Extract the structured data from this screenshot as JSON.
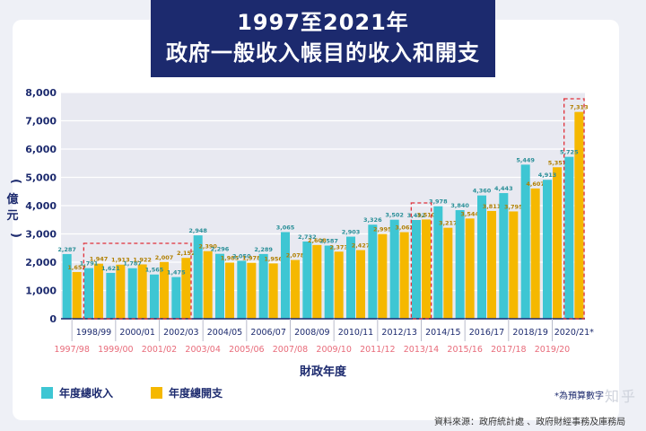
{
  "header": {
    "title_line1": "1997至2021年",
    "title_line2": "政府一般收入帳目的收入和開支"
  },
  "footnote": "*為預算數字",
  "source": "資料來源：政府統計處 、政府財經事務及庫務局",
  "watermark": "知乎",
  "colors": {
    "revenue": "#3ec6d3",
    "expenditure": "#f5b800",
    "title_bg": "#1c2a6e",
    "highlight": "#e0303a",
    "odd_label": "#e86b7a",
    "even_label": "#1c2a6e"
  },
  "chart_data": {
    "type": "bar",
    "xlabel": "財政年度",
    "ylabel": "(億元)",
    "ylim": [
      0,
      8000
    ],
    "yticks": [
      "0",
      "1,000",
      "2,000",
      "3,000",
      "4,000",
      "5,000",
      "6,000",
      "7,000",
      "8,000"
    ],
    "legend_position": "bottom-left",
    "grid": true,
    "categories": [
      "1997/98",
      "1998/99",
      "1999/00",
      "2000/01",
      "2001/02",
      "2002/03",
      "2003/04",
      "2004/05",
      "2005/06",
      "2006/07",
      "2007/08",
      "2008/09",
      "2009/10",
      "2010/11",
      "2011/12",
      "2012/13",
      "2013/14",
      "2014/15",
      "2015/16",
      "2016/17",
      "2017/18",
      "2018/19",
      "2019/20",
      "2020/21*"
    ],
    "series": [
      {
        "name": "年度總收入",
        "values": [
          2287,
          1791,
          1621,
          1787,
          1565,
          1475,
          2948,
          2296,
          2050,
          2289,
          3065,
          2732,
          2587,
          2903,
          3326,
          3502,
          3492,
          3978,
          3840,
          4360,
          4443,
          5449,
          4913,
          5725
        ],
        "labels": [
          "2,287",
          "1,791",
          "1,621",
          "1,787",
          "1,565",
          "1,475",
          "2,948",
          "2,296",
          "2,050",
          "2,289",
          "3,065",
          "2,732",
          "2,587",
          "2,903",
          "3,326",
          "3,502",
          "3,492",
          "3,978",
          "3,840",
          "4,360",
          "4,443",
          "5,449",
          "4,913",
          "5,725"
        ]
      },
      {
        "name": "年度總開支",
        "values": [
          1652,
          1947,
          1913,
          1922,
          2007,
          2152,
          2390,
          1985,
          1978,
          1956,
          2078,
          2608,
          2373,
          2427,
          2995,
          3062,
          3510,
          3217,
          3544,
          3811,
          3795,
          4607,
          5357,
          7313
        ],
        "labels": [
          "1,652",
          "1,947",
          "1,913",
          "1,922",
          "2,007",
          "2,152",
          "2,390",
          "1,985",
          "1,978",
          "1,956",
          "2,078",
          "2,608",
          "2,373",
          "2,427",
          "2,995",
          "3,062",
          "3,510",
          "3,217",
          "3,544",
          "3,811",
          "3,795",
          "4,607",
          "5,357",
          "7,313"
        ]
      }
    ],
    "highlight_groups": [
      [
        1,
        5
      ],
      [
        16,
        16
      ],
      [
        23,
        23
      ]
    ]
  }
}
